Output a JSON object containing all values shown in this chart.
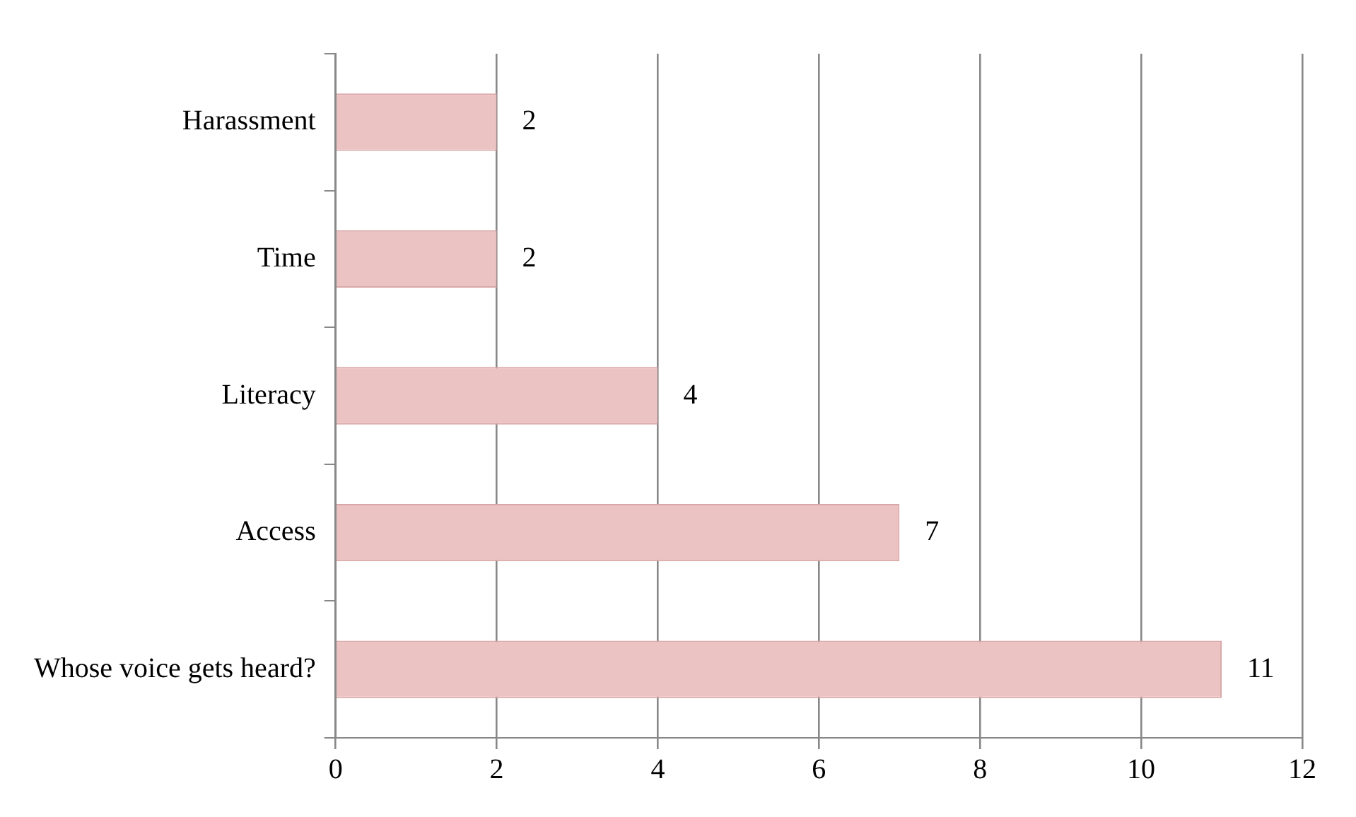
{
  "chart_data": {
    "type": "bar",
    "orientation": "horizontal",
    "categories": [
      "Harassment",
      "Time",
      "Literacy",
      "Access",
      "Whose voice gets heard?"
    ],
    "values": [
      2,
      2,
      4,
      7,
      11
    ],
    "color": "#ecc3c3",
    "xlim": [
      0,
      12
    ],
    "xticks": [
      0,
      2,
      4,
      6,
      8,
      10,
      12
    ],
    "grid": "x",
    "data_labels": true
  }
}
